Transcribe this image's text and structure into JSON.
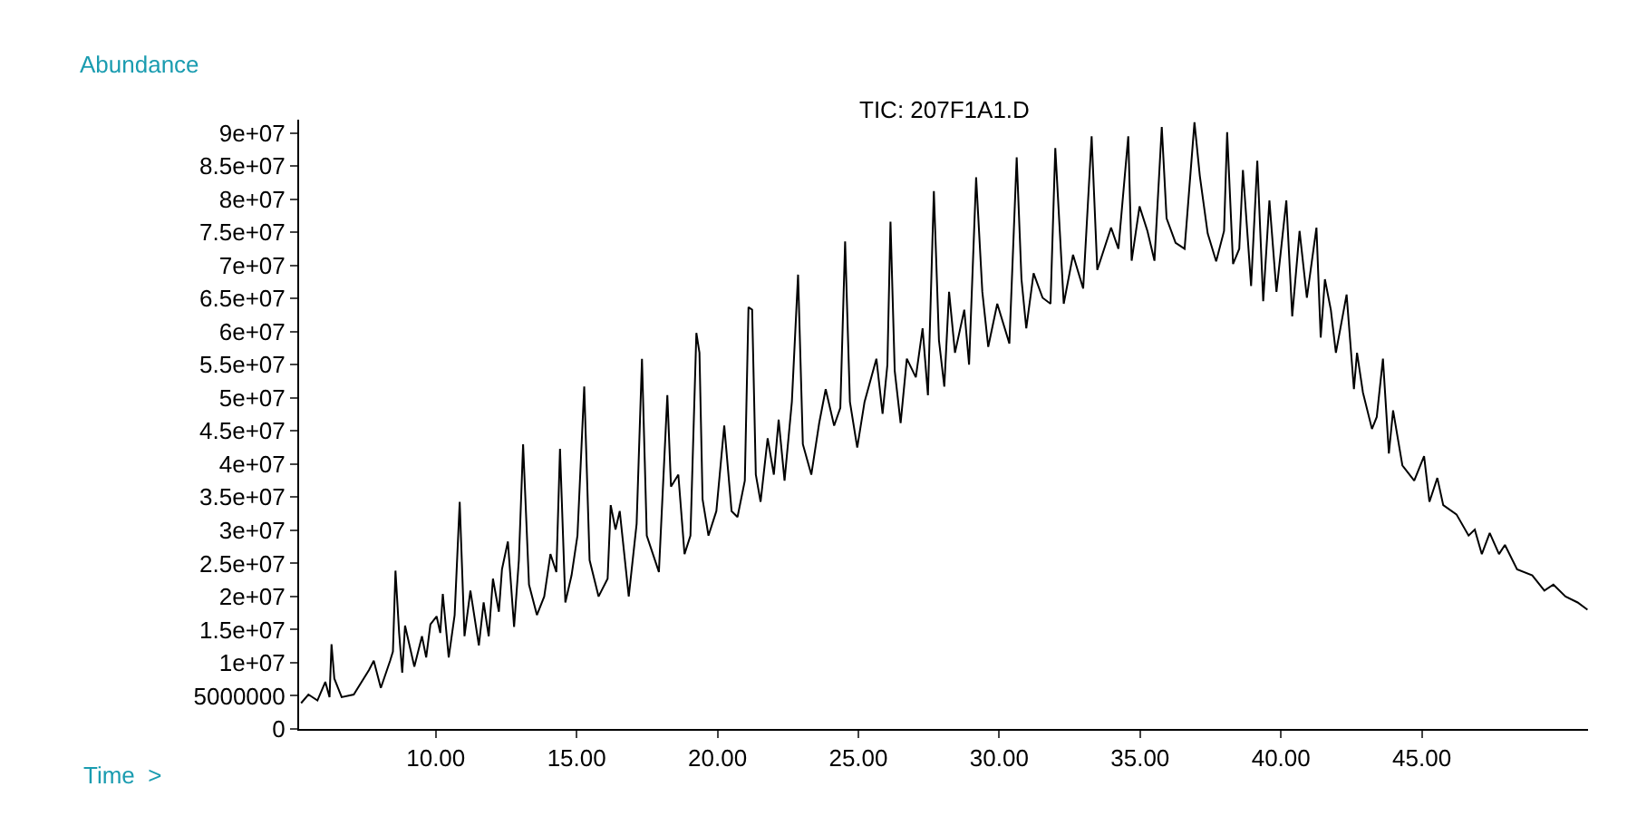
{
  "chart_data": {
    "type": "line",
    "title": "TIC: 207F1A1.D",
    "ylabel": "Abundance",
    "xlabel": "Time  >",
    "x": [
      5.22,
      5.48,
      5.8,
      6.08,
      6.23,
      6.3,
      6.4,
      6.66,
      7.09,
      7.63,
      7.8,
      8.05,
      8.38,
      8.48,
      8.57,
      8.7,
      8.81,
      8.91,
      9.24,
      9.51,
      9.66,
      9.81,
      10.03,
      10.16,
      10.25,
      10.46,
      10.67,
      10.85,
      11.02,
      11.23,
      11.53,
      11.7,
      11.88,
      12.03,
      12.24,
      12.35,
      12.56,
      12.78,
      12.95,
      13.1,
      13.31,
      13.59,
      13.85,
      14.07,
      14.28,
      14.41,
      14.6,
      14.82,
      15.03,
      15.27,
      15.46,
      15.78,
      16.1,
      16.21,
      16.38,
      16.53,
      16.85,
      17.13,
      17.32,
      17.49,
      17.92,
      18.22,
      18.35,
      18.61,
      18.83,
      19.04,
      19.25,
      19.36,
      19.47,
      19.68,
      19.96,
      20.24,
      20.5,
      20.71,
      20.97,
      21.1,
      21.23,
      21.36,
      21.53,
      21.78,
      22.0,
      22.17,
      22.38,
      22.64,
      22.86,
      23.03,
      23.33,
      23.61,
      23.84,
      24.14,
      24.36,
      24.53,
      24.7,
      24.96,
      25.22,
      25.64,
      25.86,
      26.03,
      26.14,
      26.29,
      26.5,
      26.72,
      27.04,
      27.28,
      27.47,
      27.68,
      27.86,
      28.05,
      28.22,
      28.43,
      28.76,
      28.93,
      29.18,
      29.4,
      29.61,
      29.93,
      30.36,
      30.62,
      30.79,
      30.96,
      31.22,
      31.54,
      31.82,
      31.99,
      32.29,
      32.62,
      32.98,
      33.28,
      33.48,
      33.97,
      34.23,
      34.58,
      34.7,
      34.98,
      35.26,
      35.51,
      35.77,
      35.94,
      36.26,
      36.58,
      36.93,
      37.12,
      37.4,
      37.7,
      37.98,
      38.09,
      38.3,
      38.52,
      38.65,
      38.94,
      39.16,
      39.37,
      39.59,
      39.84,
      40.19,
      40.4,
      40.66,
      40.92,
      41.26,
      41.41,
      41.56,
      41.77,
      41.95,
      42.33,
      42.59,
      42.7,
      42.91,
      43.23,
      43.4,
      43.62,
      43.83,
      43.98,
      44.31,
      44.73,
      45.08,
      45.27,
      45.55,
      45.76,
      46.23,
      46.66,
      46.88,
      47.13,
      47.41,
      47.74,
      47.95,
      48.38,
      48.92,
      49.35,
      49.67,
      50.1,
      50.53,
      50.88
    ],
    "series": [
      {
        "color": "#000000",
        "values": [
          3900000.0,
          5200000.0,
          4300000.0,
          7100000.0,
          4800000.0,
          12800000.0,
          7600000.0,
          4800000.0,
          5200000.0,
          8900000.0,
          10300000.0,
          6200000.0,
          10300000.0,
          11700000.0,
          23900000.0,
          14500000.0,
          8500000.0,
          15600000.0,
          9400000.0,
          14000000.0,
          10800000.0,
          15800000.0,
          17000000.0,
          14500000.0,
          20400000.0,
          10800000.0,
          17200000.0,
          34300000.0,
          14000000.0,
          20900000.0,
          12600000.0,
          19100000.0,
          14000000.0,
          22700000.0,
          17700000.0,
          24100000.0,
          28300000.0,
          15400000.0,
          25500000.0,
          43000000.0,
          21800000.0,
          17200000.0,
          20000000.0,
          26400000.0,
          23700000.0,
          42300000.0,
          19100000.0,
          23200000.0,
          29200000.0,
          51700000.0,
          25500000.0,
          20000000.0,
          22700000.0,
          33800000.0,
          30100000.0,
          32900000.0,
          20000000.0,
          31000000.0,
          55900000.0,
          29200000.0,
          23700000.0,
          50400000.0,
          36600000.0,
          38400000.0,
          26400000.0,
          29200000.0,
          59800000.0,
          56800000.0,
          34700000.0,
          29200000.0,
          32900000.0,
          45800000.0,
          32900000.0,
          32000000.0,
          37500000.0,
          63700000.0,
          63300000.0,
          38400000.0,
          34300000.0,
          43900000.0,
          38400000.0,
          46700000.0,
          37500000.0,
          49400000.0,
          68600000.0,
          43000000.0,
          38400000.0,
          46200000.0,
          51300000.0,
          45800000.0,
          48500000.0,
          73600000.0,
          49400000.0,
          42500000.0,
          49400000.0,
          55900000.0,
          47600000.0,
          55000000.0,
          76600000.0,
          54100000.0,
          46200000.0,
          55900000.0,
          53100000.0,
          60500000.0,
          50400000.0,
          81200000.0,
          58700000.0,
          51700000.0,
          66000000.0,
          56800000.0,
          63300000.0,
          55000000.0,
          83300000.0,
          66000000.0,
          57700000.0,
          64200000.0,
          58200000.0,
          86300000.0,
          67900000.0,
          60500000.0,
          68800000.0,
          65100000.0,
          64200000.0,
          87700000.0,
          64200000.0,
          71600000.0,
          66500000.0,
          89500000.0,
          69300000.0,
          75700000.0,
          72500000.0,
          89500000.0,
          70700000.0,
          78900000.0,
          75200000.0,
          70700000.0,
          90900000.0,
          77100000.0,
          73400000.0,
          72500000.0,
          91600000.0,
          83500000.0,
          74800000.0,
          70600000.0,
          75200000.0,
          90100000.0,
          70200000.0,
          72500000.0,
          84400000.0,
          66900000.0,
          85800000.0,
          64600000.0,
          79800000.0,
          66000000.0,
          79800000.0,
          62300000.0,
          75200000.0,
          65100000.0,
          75700000.0,
          59100000.0,
          67900000.0,
          63300000.0,
          56800000.0,
          65600000.0,
          51300000.0,
          56800000.0,
          50800000.0,
          45300000.0,
          47100000.0,
          55900000.0,
          41600000.0,
          48100000.0,
          39800000.0,
          37500000.0,
          41200000.0,
          34300000.0,
          37900000.0,
          33800000.0,
          32400000.0,
          29200000.0,
          30100000.0,
          26400000.0,
          29600000.0,
          26400000.0,
          27800000.0,
          24100000.0,
          23200000.0,
          20900000.0,
          21800000.0,
          20000000.0,
          19100000.0,
          18000000.0
        ]
      }
    ],
    "xlim": [
      5.15,
      50.9
    ],
    "xticks": [
      {
        "value": 10,
        "label": "10.00"
      },
      {
        "value": 15,
        "label": "15.00"
      },
      {
        "value": 20,
        "label": "20.00"
      },
      {
        "value": 25,
        "label": "25.00"
      },
      {
        "value": 30,
        "label": "30.00"
      },
      {
        "value": 35,
        "label": "35.00"
      },
      {
        "value": 40,
        "label": "40.00"
      },
      {
        "value": 45,
        "label": "45.00"
      }
    ],
    "ylim": [
      0,
      92000000.0
    ],
    "yticks": [
      0,
      5000000,
      {
        "value": 10000000.0,
        "label": "1e+07"
      },
      {
        "value": 15000000.0,
        "label": "1.5e+07"
      },
      {
        "value": 20000000.0,
        "label": "2e+07"
      },
      {
        "value": 25000000.0,
        "label": "2.5e+07"
      },
      {
        "value": 30000000.0,
        "label": "3e+07"
      },
      {
        "value": 35000000.0,
        "label": "3.5e+07"
      },
      {
        "value": 40000000.0,
        "label": "4e+07"
      },
      {
        "value": 45000000.0,
        "label": "4.5e+07"
      },
      {
        "value": 50000000.0,
        "label": "5e+07"
      },
      {
        "value": 55000000.0,
        "label": "5.5e+07"
      },
      {
        "value": 60000000.0,
        "label": "6e+07"
      },
      {
        "value": 65000000.0,
        "label": "6.5e+07"
      },
      {
        "value": 70000000.0,
        "label": "7e+07"
      },
      {
        "value": 75000000.0,
        "label": "7.5e+07"
      },
      {
        "value": 80000000.0,
        "label": "8e+07"
      },
      {
        "value": 85000000.0,
        "label": "8.5e+07"
      },
      {
        "value": 90000000.0,
        "label": "9e+07"
      }
    ],
    "marker": "none",
    "line_style": "solid"
  }
}
